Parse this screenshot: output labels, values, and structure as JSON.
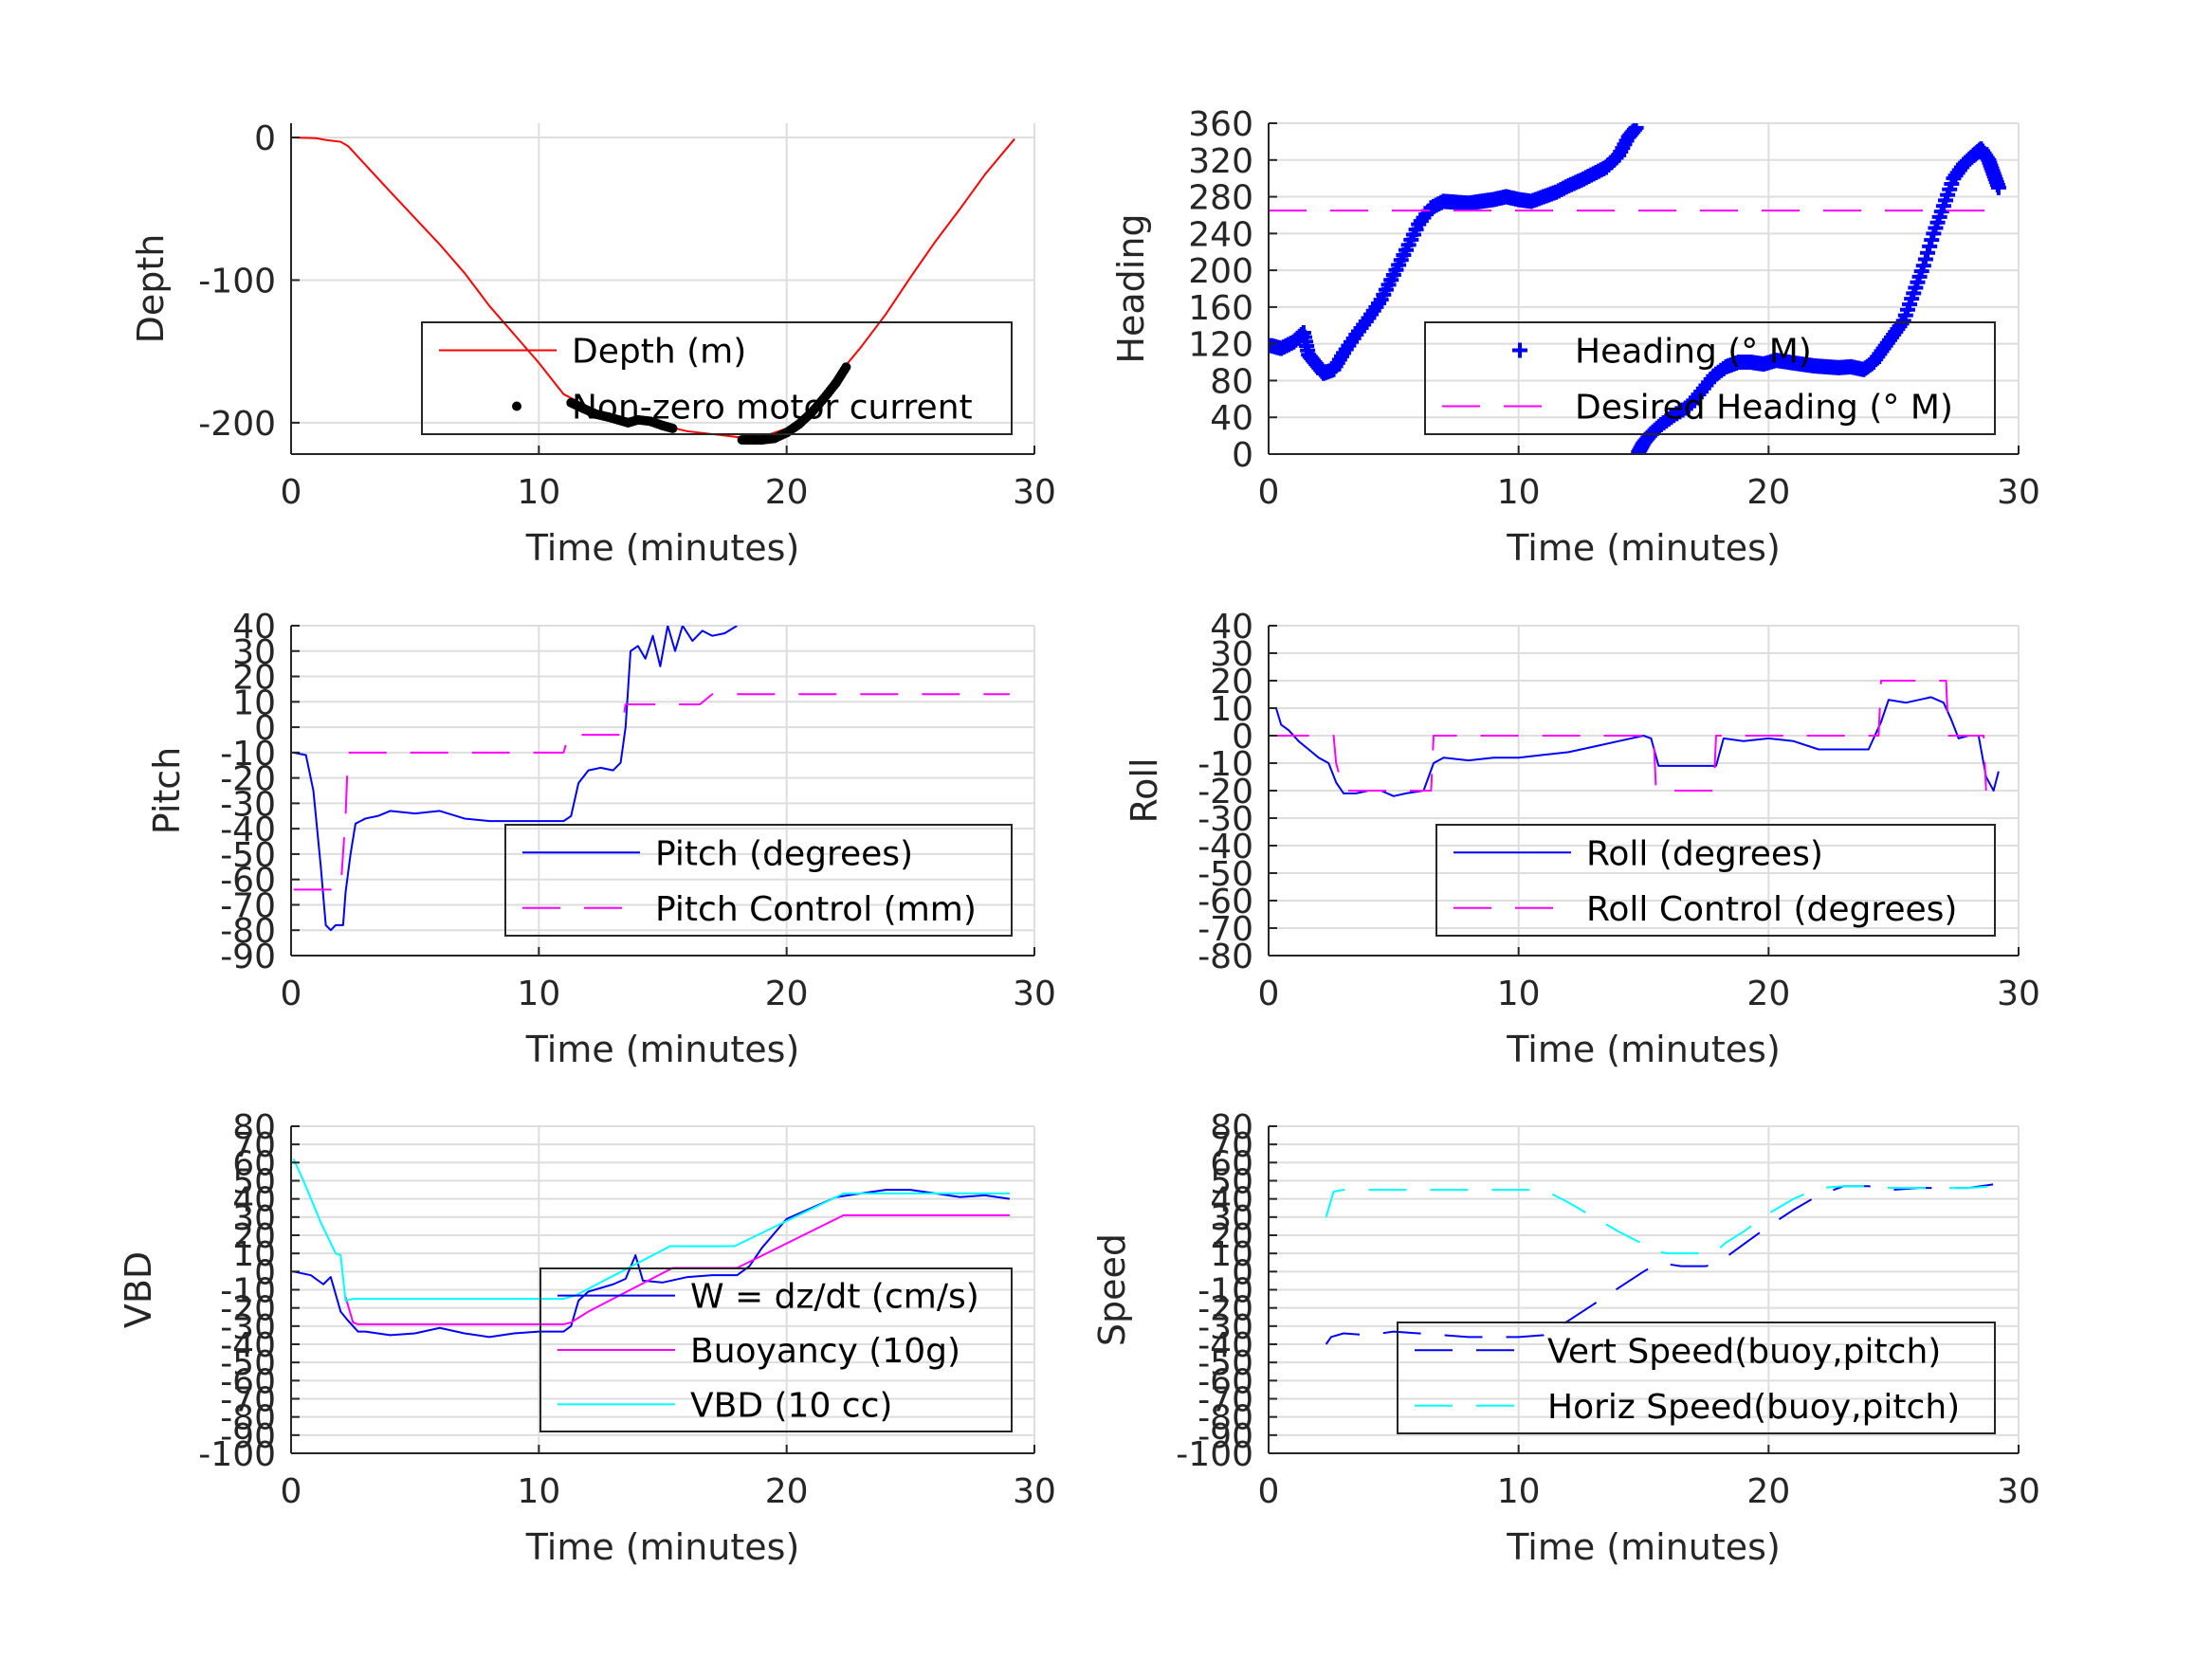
{
  "chart_data": [
    {
      "id": "depth",
      "type": "line",
      "title": "",
      "xlabel": "Time (minutes)",
      "ylabel": "Depth",
      "xlim": [
        0,
        30
      ],
      "ylim": [
        -222,
        10
      ],
      "xticks": [
        0,
        10,
        20,
        30
      ],
      "yticks": [
        0,
        -100,
        -200
      ],
      "grid": true,
      "legend_position": "bottom-right",
      "series": [
        {
          "name": "Depth (m)",
          "style": "solid",
          "color": "#ff0000",
          "marker": "none",
          "x": [
            0,
            1,
            1.5,
            2,
            2.3,
            4,
            6,
            7,
            8,
            9,
            10,
            11,
            12,
            13,
            14,
            15,
            16,
            17,
            18,
            18.5,
            19,
            20,
            21,
            22,
            23,
            24,
            25,
            26,
            27,
            28,
            29.2
          ],
          "y": [
            0,
            -0.5,
            -2,
            -3,
            -6,
            -38,
            -75,
            -95,
            -118,
            -138,
            -158,
            -180,
            -189,
            -196,
            -198,
            -202,
            -206,
            -208,
            -210,
            -211,
            -210,
            -204,
            -192,
            -168,
            -147,
            -124,
            -98,
            -73,
            -50,
            -26,
            -1
          ]
        },
        {
          "name": "Non-zero motor current",
          "style": "dots",
          "color": "#000000",
          "marker": "dot",
          "x": [
            11.3,
            11.8,
            12.3,
            12.8,
            13.2,
            13.6,
            14.0,
            14.5,
            15.0,
            15.4,
            18.2,
            18.6,
            19.0,
            19.5,
            20.0,
            20.5,
            21.0,
            21.5,
            22.0,
            22.4
          ],
          "y": [
            -186,
            -190,
            -194,
            -196,
            -198,
            -200,
            -198,
            -199,
            -202,
            -204,
            -212,
            -212,
            -212,
            -211,
            -207,
            -201,
            -193,
            -183,
            -172,
            -161
          ]
        }
      ]
    },
    {
      "id": "heading",
      "type": "scatter",
      "title": "",
      "xlabel": "Time (minutes)",
      "ylabel": "Heading",
      "xlim": [
        0,
        30
      ],
      "ylim": [
        0,
        360
      ],
      "xticks": [
        0,
        10,
        20,
        30
      ],
      "yticks": [
        0,
        40,
        80,
        120,
        160,
        200,
        240,
        280,
        320,
        360
      ],
      "grid": true,
      "legend_position": "bottom-right",
      "series": [
        {
          "name": "Heading (° M)",
          "style": "markers",
          "color": "#0000ff",
          "marker": "plus",
          "x": [
            0.1,
            0.5,
            1.0,
            1.4,
            1.6,
            1.9,
            2.2,
            2.6,
            3.0,
            3.5,
            4.0,
            4.5,
            5.0,
            5.5,
            6.0,
            6.5,
            7.0,
            7.5,
            8.0,
            8.5,
            9.0,
            9.5,
            10.0,
            10.5,
            11.0,
            11.5,
            12.0,
            12.5,
            13.0,
            13.5,
            14.0,
            14.4,
            14.7,
            14.8,
            15.0,
            15.3,
            15.7,
            16.2,
            16.8,
            17.3,
            17.8,
            18.3,
            18.8,
            19.3,
            19.8,
            20.3,
            20.8,
            21.3,
            21.8,
            22.3,
            22.8,
            23.3,
            23.8,
            24.2,
            24.6,
            25.0,
            25.4,
            25.8,
            26.2,
            26.6,
            27.0,
            27.4,
            27.8,
            28.2,
            28.5,
            28.8,
            29.0,
            29.2
          ],
          "y": [
            118,
            115,
            122,
            132,
            108,
            98,
            88,
            92,
            110,
            130,
            148,
            168,
            195,
            222,
            250,
            268,
            275,
            274,
            273,
            275,
            277,
            280,
            277,
            275,
            280,
            285,
            292,
            298,
            305,
            312,
            325,
            345,
            355,
            2,
            12,
            22,
            32,
            42,
            52,
            68,
            85,
            95,
            100,
            100,
            98,
            102,
            100,
            98,
            96,
            95,
            94,
            95,
            92,
            100,
            115,
            130,
            145,
            175,
            205,
            240,
            270,
            300,
            315,
            325,
            332,
            320,
            305,
            290
          ]
        },
        {
          "name": "Desired Heading (° M)",
          "style": "dashed",
          "color": "#ff00ff",
          "marker": "none",
          "x": [
            0,
            29.2
          ],
          "y": [
            265,
            265
          ]
        }
      ]
    },
    {
      "id": "pitch",
      "type": "line",
      "title": "",
      "xlabel": "Time (minutes)",
      "ylabel": "Pitch",
      "xlim": [
        0,
        30
      ],
      "ylim": [
        -90,
        40
      ],
      "xticks": [
        0,
        10,
        20,
        30
      ],
      "yticks": [
        40,
        30,
        20,
        10,
        0,
        -10,
        -20,
        -30,
        -40,
        -50,
        -60,
        -70,
        -80,
        -90
      ],
      "grid": true,
      "legend_position": "bottom-right",
      "series": [
        {
          "name": "Pitch (degrees)",
          "style": "solid",
          "color": "#0000ff",
          "marker": "none",
          "x": [
            0.1,
            0.6,
            0.9,
            1.2,
            1.4,
            1.6,
            1.8,
            2.1,
            2.2,
            2.4,
            2.6,
            3.0,
            3.5,
            4.0,
            5.0,
            6.0,
            7.0,
            8.0,
            9.0,
            10.0,
            10.5,
            11.0,
            11.3,
            11.6,
            12.0,
            12.5,
            13.0,
            13.3,
            13.5,
            13.7,
            14.0,
            14.3,
            14.6,
            14.9,
            15.2,
            15.5,
            15.8,
            16.2,
            16.6,
            17.0,
            17.5,
            18.0
          ],
          "y": [
            -10,
            -11,
            -25,
            -55,
            -78,
            -80,
            -78,
            -78,
            -65,
            -50,
            -38,
            -36,
            -35,
            -33,
            -34,
            -33,
            -36,
            -37,
            -37,
            -37,
            -37,
            -37,
            -35,
            -22,
            -17,
            -16,
            -17,
            -14,
            0,
            30,
            32,
            27,
            36,
            24,
            40,
            30,
            40,
            34,
            38,
            36,
            37,
            40
          ]
        },
        {
          "name": "Pitch Control (mm)",
          "style": "dashed",
          "color": "#ff00ff",
          "marker": "none",
          "x": [
            0.1,
            1.9,
            2.0,
            2.2,
            2.3,
            11.0,
            11.2,
            13.0,
            13.3,
            13.5,
            16.5,
            17.0,
            29.0
          ],
          "y": [
            -64,
            -64,
            -64,
            -35,
            -10,
            -10,
            -3,
            -3,
            -3,
            9,
            9,
            13,
            13
          ]
        }
      ]
    },
    {
      "id": "roll",
      "type": "line",
      "title": "",
      "xlabel": "Time (minutes)",
      "ylabel": "Roll",
      "xlim": [
        0,
        30
      ],
      "ylim": [
        -80,
        40
      ],
      "xticks": [
        0,
        10,
        20,
        30
      ],
      "yticks": [
        40,
        30,
        20,
        10,
        0,
        -10,
        -20,
        -30,
        -40,
        -50,
        -60,
        -70,
        -80
      ],
      "grid": true,
      "legend_position": "bottom-right",
      "series": [
        {
          "name": "Roll (degrees)",
          "style": "solid",
          "color": "#0000ff",
          "marker": "none",
          "x": [
            0.3,
            0.5,
            0.8,
            1.2,
            1.6,
            2.0,
            2.4,
            2.7,
            3.0,
            3.5,
            4.0,
            4.5,
            5.0,
            5.5,
            6.2,
            6.6,
            7.0,
            8.0,
            9.0,
            10.0,
            11.0,
            12.0,
            13.0,
            14.0,
            15.0,
            15.3,
            15.6,
            16.5,
            17.5,
            17.9,
            18.2,
            19.0,
            20.0,
            21.0,
            22.0,
            23.0,
            24.0,
            24.5,
            24.8,
            25.5,
            26.0,
            26.5,
            27.0,
            27.3,
            27.6,
            28.0,
            28.4,
            28.7,
            29.0,
            29.2
          ],
          "y": [
            10,
            4,
            2,
            -2,
            -5,
            -8,
            -10,
            -17,
            -21,
            -21,
            -20,
            -20,
            -22,
            -21,
            -20,
            -10,
            -8,
            -9,
            -8,
            -8,
            -7,
            -6,
            -4,
            -2,
            0,
            -1,
            -11,
            -11,
            -11,
            -11,
            -1,
            -2,
            -1,
            -2,
            -5,
            -5,
            -5,
            5,
            13,
            12,
            13,
            14,
            12,
            6,
            -1,
            0,
            0,
            -15,
            -20,
            -13
          ]
        },
        {
          "name": "Roll Control (degrees)",
          "style": "dashed",
          "color": "#ff00ff",
          "marker": "none",
          "x": [
            0.1,
            2.6,
            2.7,
            3.0,
            6.5,
            6.6,
            15.4,
            15.5,
            17.8,
            17.9,
            24.4,
            24.5,
            27.1,
            27.2,
            28.6,
            28.7
          ],
          "y": [
            0,
            0,
            -10,
            -20,
            -20,
            0,
            0,
            -20,
            -20,
            0,
            0,
            20,
            20,
            0,
            0,
            -20
          ]
        }
      ]
    },
    {
      "id": "vbd",
      "type": "line",
      "title": "",
      "xlabel": "Time (minutes)",
      "ylabel": "VBD",
      "xlim": [
        0,
        30
      ],
      "ylim": [
        -100,
        80
      ],
      "xticks": [
        0,
        10,
        20,
        30
      ],
      "yticks": [
        80,
        70,
        60,
        50,
        40,
        30,
        20,
        10,
        0,
        -10,
        -20,
        -30,
        -40,
        -50,
        -60,
        -70,
        -80,
        -90,
        -100
      ],
      "grid": true,
      "legend_position": "bottom-right",
      "series": [
        {
          "name": "W = dz/dt (cm/s)",
          "style": "solid",
          "color": "#0000ff",
          "marker": "none",
          "x": [
            0.1,
            0.8,
            1.3,
            1.6,
            2.0,
            2.3,
            2.7,
            3.0,
            4.0,
            5.0,
            6.0,
            7.0,
            8.0,
            9.0,
            10.0,
            11.0,
            11.3,
            11.6,
            12.0,
            13.0,
            13.5,
            13.9,
            14.2,
            15.0,
            16.0,
            17.0,
            18.0,
            18.5,
            19.0,
            20.0,
            21.0,
            22.0,
            23.0,
            24.0,
            25.0,
            26.0,
            27.0,
            28.0,
            29.0
          ],
          "y": [
            0,
            -2,
            -7,
            -3,
            -22,
            -27,
            -33,
            -33,
            -35,
            -34,
            -31,
            -34,
            -36,
            -34,
            -33,
            -33,
            -30,
            -16,
            -11,
            -7,
            -4,
            9,
            -5,
            -6,
            -3,
            -2,
            -2,
            3,
            13,
            29,
            35,
            41,
            43,
            45,
            45,
            43,
            41,
            42,
            40
          ]
        },
        {
          "name": "Buoyancy (10g)",
          "style": "solid",
          "color": "#ff00ff",
          "marker": "none",
          "x": [
            2.2,
            2.5,
            2.7,
            11.0,
            11.3,
            12.0,
            15.4,
            18.0,
            22.3,
            29.0
          ],
          "y": [
            -14,
            -28,
            -29,
            -29,
            -28,
            -22,
            2,
            2,
            31,
            31
          ]
        },
        {
          "name": "VBD (10 cc)",
          "style": "solid",
          "color": "#00ffff",
          "marker": "none",
          "x": [
            0.1,
            0.5,
            1.2,
            1.8,
            2.0,
            2.2,
            2.5,
            11.0,
            11.5,
            15.3,
            17.9,
            22.3,
            29.0
          ],
          "y": [
            62,
            50,
            27,
            10,
            9,
            -16,
            -15,
            -15,
            -13,
            14,
            14,
            43,
            43
          ]
        }
      ]
    },
    {
      "id": "speed",
      "type": "line",
      "title": "",
      "xlabel": "Time (minutes)",
      "ylabel": "Speed",
      "xlim": [
        0,
        30
      ],
      "ylim": [
        -100,
        80
      ],
      "xticks": [
        0,
        10,
        20,
        30
      ],
      "yticks": [
        80,
        70,
        60,
        50,
        40,
        30,
        20,
        10,
        0,
        -10,
        -20,
        -30,
        -40,
        -50,
        -60,
        -70,
        -80,
        -90,
        -100
      ],
      "grid": true,
      "legend_position": "bottom-right",
      "series": [
        {
          "name": "Vert Speed(buoy,pitch)",
          "style": "dashed",
          "color": "#0000ff",
          "marker": "none",
          "x": [
            2.3,
            2.5,
            3.0,
            4.0,
            5.0,
            6.0,
            7.0,
            8.0,
            9.0,
            10.0,
            11.0,
            12.0,
            13.0,
            14.0,
            15.0,
            15.5,
            16.0,
            16.5,
            17.0,
            17.5,
            18.0,
            19.0,
            20.0,
            21.0,
            22.0,
            23.0,
            24.0,
            25.0,
            26.0,
            27.0,
            28.0,
            29.0
          ],
          "y": [
            -40,
            -36,
            -34,
            -35,
            -33,
            -34,
            -35,
            -36,
            -36,
            -36,
            -35,
            -27,
            -18,
            -9,
            0,
            4,
            4,
            3,
            3,
            3,
            5,
            15,
            25,
            34,
            42,
            47,
            47,
            45,
            46,
            46,
            46,
            48
          ]
        },
        {
          "name": "Horiz Speed(buoy,pitch)",
          "style": "dashed",
          "color": "#00ffff",
          "marker": "none",
          "x": [
            2.3,
            2.6,
            3.0,
            5.0,
            7.0,
            9.0,
            10.0,
            11.0,
            12.0,
            13.0,
            14.0,
            15.0,
            15.5,
            16.0,
            17.0,
            17.8,
            18.3,
            19.0,
            20.0,
            21.0,
            22.0,
            23.0,
            24.0,
            25.0,
            26.0,
            27.0,
            28.0,
            29.0
          ],
          "y": [
            30,
            44,
            45,
            45,
            45,
            45,
            45,
            45,
            38,
            30,
            22,
            15,
            11,
            10,
            10,
            10,
            16,
            22,
            32,
            40,
            46,
            47,
            47,
            46,
            46,
            46,
            46,
            47
          ]
        }
      ]
    }
  ]
}
